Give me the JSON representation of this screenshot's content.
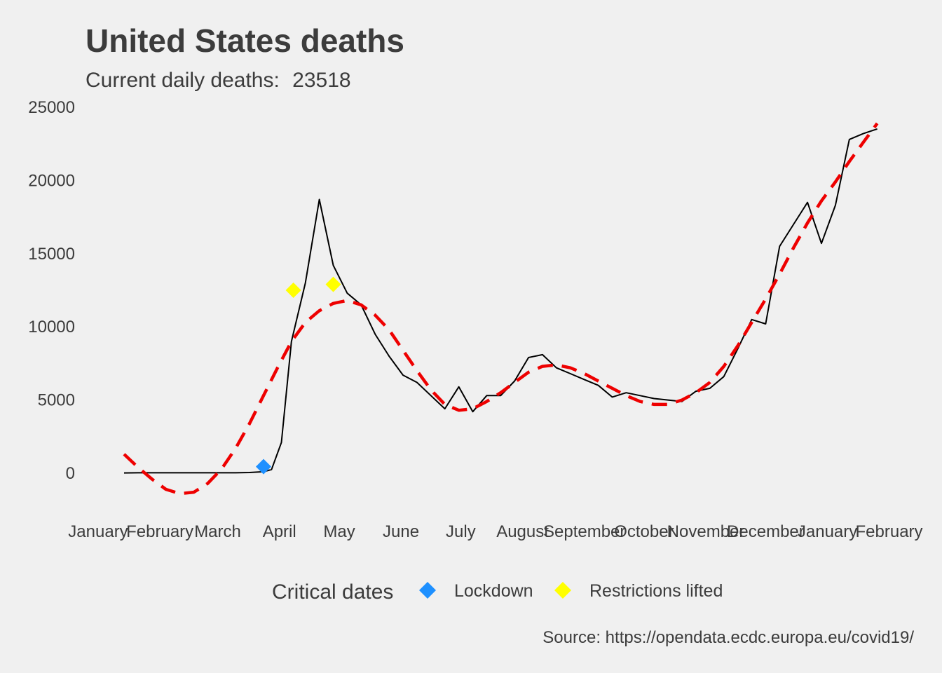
{
  "chart_data": {
    "type": "line",
    "title": "United States deaths",
    "subtitle_label": "Current daily deaths:",
    "subtitle_value": "23518",
    "caption": "Source: https://opendata.ecdc.europa.eu/covid19/",
    "xlabel": "",
    "ylabel": "",
    "ylim": [
      -3000,
      25600
    ],
    "grid": false,
    "y_ticks": [
      0,
      5000,
      10000,
      15000,
      20000,
      25000
    ],
    "x_ticks": [
      {
        "label": "January",
        "week": 0.0
      },
      {
        "label": "February",
        "week": 4.43
      },
      {
        "label": "March",
        "week": 8.57
      },
      {
        "label": "April",
        "week": 13.0
      },
      {
        "label": "May",
        "week": 17.29
      },
      {
        "label": "June",
        "week": 21.71
      },
      {
        "label": "July",
        "week": 26.0
      },
      {
        "label": "August",
        "week": 30.43
      },
      {
        "label": "September",
        "week": 34.86
      },
      {
        "label": "October",
        "week": 39.14
      },
      {
        "label": "November",
        "week": 43.57
      },
      {
        "label": "December",
        "week": 47.86
      },
      {
        "label": "January",
        "week": 52.29
      },
      {
        "label": "February",
        "week": 56.71
      }
    ],
    "series": [
      {
        "values": [
          [
            1.86,
            20
          ],
          [
            2.86,
            30
          ],
          [
            3.86,
            30
          ],
          [
            4.86,
            30
          ],
          [
            5.86,
            30
          ],
          [
            6.86,
            30
          ],
          [
            7.86,
            30
          ],
          [
            8.86,
            30
          ],
          [
            9.86,
            30
          ],
          [
            10.86,
            50
          ],
          [
            11.86,
            100
          ],
          [
            12.43,
            250
          ],
          [
            13.14,
            2100
          ],
          [
            13.86,
            9000
          ],
          [
            14.86,
            13000
          ],
          [
            15.86,
            18700
          ],
          [
            16.86,
            14200
          ],
          [
            17.86,
            12300
          ],
          [
            18.86,
            11500
          ],
          [
            19.86,
            9500
          ],
          [
            20.86,
            8000
          ],
          [
            21.86,
            6700
          ],
          [
            22.86,
            6200
          ],
          [
            23.86,
            5300
          ],
          [
            24.86,
            4400
          ],
          [
            25.86,
            5900
          ],
          [
            26.86,
            4200
          ],
          [
            27.86,
            5300
          ],
          [
            28.86,
            5300
          ],
          [
            29.86,
            6300
          ],
          [
            30.86,
            7900
          ],
          [
            31.86,
            8100
          ],
          [
            32.86,
            7200
          ],
          [
            33.86,
            6800
          ],
          [
            34.86,
            6400
          ],
          [
            35.86,
            6000
          ],
          [
            36.86,
            5200
          ],
          [
            37.86,
            5500
          ],
          [
            38.86,
            5300
          ],
          [
            39.86,
            5100
          ],
          [
            40.86,
            5000
          ],
          [
            41.86,
            4900
          ],
          [
            42.86,
            5600
          ],
          [
            43.86,
            5800
          ],
          [
            44.86,
            6600
          ],
          [
            45.86,
            8500
          ],
          [
            46.86,
            10500
          ],
          [
            47.86,
            10200
          ],
          [
            48.86,
            15500
          ],
          [
            49.86,
            17000
          ],
          [
            50.86,
            18500
          ],
          [
            51.86,
            15700
          ],
          [
            52.86,
            18300
          ],
          [
            53.86,
            22800
          ],
          [
            54.86,
            23200
          ],
          [
            55.86,
            23518
          ]
        ]
      },
      {
        "values": [
          [
            1.86,
            1300
          ],
          [
            2.86,
            400
          ],
          [
            3.86,
            -400
          ],
          [
            4.86,
            -1100
          ],
          [
            5.86,
            -1400
          ],
          [
            6.86,
            -1300
          ],
          [
            7.86,
            -700
          ],
          [
            8.86,
            300
          ],
          [
            9.86,
            1700
          ],
          [
            10.86,
            3400
          ],
          [
            11.86,
            5300
          ],
          [
            12.86,
            7200
          ],
          [
            13.86,
            9000
          ],
          [
            14.86,
            10300
          ],
          [
            15.86,
            11100
          ],
          [
            16.86,
            11600
          ],
          [
            17.86,
            11800
          ],
          [
            18.86,
            11500
          ],
          [
            19.86,
            10800
          ],
          [
            20.86,
            9800
          ],
          [
            21.86,
            8400
          ],
          [
            22.86,
            7000
          ],
          [
            23.86,
            5700
          ],
          [
            24.86,
            4700
          ],
          [
            25.86,
            4300
          ],
          [
            26.86,
            4400
          ],
          [
            27.86,
            4900
          ],
          [
            28.86,
            5500
          ],
          [
            29.86,
            6200
          ],
          [
            30.86,
            6900
          ],
          [
            31.86,
            7300
          ],
          [
            32.86,
            7400
          ],
          [
            33.86,
            7200
          ],
          [
            34.86,
            6800
          ],
          [
            35.86,
            6300
          ],
          [
            36.86,
            5800
          ],
          [
            37.86,
            5300
          ],
          [
            38.86,
            4900
          ],
          [
            39.86,
            4700
          ],
          [
            40.86,
            4700
          ],
          [
            41.86,
            5000
          ],
          [
            42.86,
            5500
          ],
          [
            43.86,
            6200
          ],
          [
            44.86,
            7300
          ],
          [
            45.86,
            8700
          ],
          [
            46.86,
            10300
          ],
          [
            47.86,
            11900
          ],
          [
            48.86,
            13600
          ],
          [
            49.86,
            15400
          ],
          [
            50.86,
            17100
          ],
          [
            51.86,
            18600
          ],
          [
            52.86,
            19900
          ],
          [
            53.86,
            21300
          ],
          [
            54.86,
            22600
          ],
          [
            55.86,
            23900
          ]
        ]
      }
    ],
    "points": [
      {
        "kind": "Lockdown",
        "x": 11.86,
        "y": 450
      },
      {
        "kind": "Restrictions lifted",
        "x": 14.0,
        "y": 12500
      },
      {
        "kind": "Restrictions lifted",
        "x": 16.86,
        "y": 12900
      }
    ],
    "legend": {
      "title": "Critical dates",
      "placement": "bottom",
      "items": [
        {
          "label": "Lockdown",
          "color": "#1e90ff"
        },
        {
          "label": "Restrictions lifted",
          "color": "#ffff00"
        }
      ]
    },
    "colors": {
      "background": "#f0f0f0",
      "text": "#3c3c3c",
      "line": "#000000",
      "trend": "#ee0000"
    }
  }
}
